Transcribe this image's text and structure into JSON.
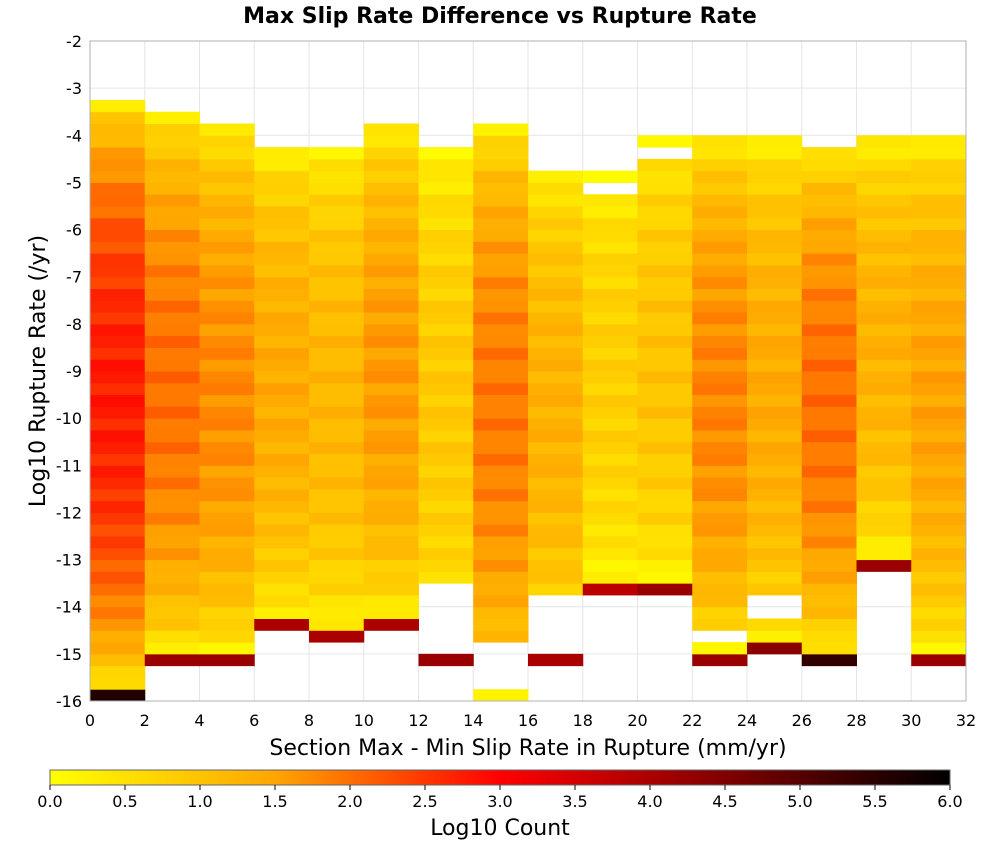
{
  "chart_data": {
    "type": "heatmap",
    "title": "Max Slip Rate Difference vs Rupture Rate",
    "xlabel": "Section Max - Min Slip Rate in Rupture (mm/yr)",
    "ylabel": "Log10 Rupture Rate (/yr)",
    "xlim": [
      0,
      32
    ],
    "ylim": [
      -16,
      -2
    ],
    "x_bin_width": 2,
    "y_bin_height": 0.25,
    "x_ticks": [
      "0",
      "2",
      "4",
      "6",
      "8",
      "10",
      "12",
      "14",
      "16",
      "18",
      "20",
      "22",
      "24",
      "26",
      "28",
      "30",
      "32"
    ],
    "y_ticks": [
      "-2",
      "-3",
      "-4",
      "-5",
      "-6",
      "-7",
      "-8",
      "-9",
      "-10",
      "-11",
      "-12",
      "-13",
      "-14",
      "-15",
      "-16"
    ],
    "grid": true,
    "colorbar": {
      "label": "Log10 Count",
      "range": [
        0,
        6
      ],
      "ticks": [
        "0.0",
        "0.5",
        "1.0",
        "1.5",
        "2.0",
        "2.5",
        "3.0",
        "3.5",
        "4.0",
        "4.5",
        "5.0",
        "5.5",
        "6.0"
      ],
      "colors": [
        "#ffff00",
        "#ffa500",
        "#ff0000",
        "#800000",
        "#000000"
      ]
    },
    "columns": [
      {
        "x": 0,
        "bottom": 5.6,
        "peak": 2.75,
        "min_y": -16,
        "max_y": -3.25,
        "gaps": []
      },
      {
        "x": 2,
        "bottom": 4.2,
        "peak": 2.0,
        "min_y": -15.25,
        "max_y": -3.5,
        "gaps": []
      },
      {
        "x": 4,
        "bottom": 4.2,
        "peak": 1.75,
        "min_y": -15.25,
        "max_y": -3.75,
        "gaps": []
      },
      {
        "x": 6,
        "bottom": 4.0,
        "peak": 1.4,
        "min_y": -14.5,
        "max_y": -4.25,
        "gaps": []
      },
      {
        "x": 8,
        "bottom": 4.0,
        "peak": 1.2,
        "min_y": -14.75,
        "max_y": -4.25,
        "gaps": []
      },
      {
        "x": 10,
        "bottom": 4.0,
        "peak": 1.6,
        "min_y": -14.5,
        "max_y": -3.75,
        "gaps": []
      },
      {
        "x": 12,
        "bottom": 4.2,
        "peak": 0.9,
        "min_y": -15.25,
        "max_y": -4.25,
        "gaps": [
          [
            -15,
            -13.5
          ]
        ]
      },
      {
        "x": 14,
        "bottom": 0.2,
        "peak": 1.9,
        "min_y": -16,
        "max_y": -3.75,
        "gaps": [
          [
            -15.75,
            -14.75
          ]
        ]
      },
      {
        "x": 16,
        "bottom": 4.0,
        "peak": 1.3,
        "min_y": -15.25,
        "max_y": -4.75,
        "gaps": [
          [
            -15,
            -13.75
          ]
        ]
      },
      {
        "x": 18,
        "bottom": 3.8,
        "peak": 0.8,
        "min_y": -13.75,
        "max_y": -4.75,
        "gaps": [
          [
            -5.25,
            -5.0
          ]
        ]
      },
      {
        "x": 20,
        "bottom": 4.2,
        "peak": 1.0,
        "min_y": -13.75,
        "max_y": -4.0,
        "gaps": [
          [
            -4.5,
            -4.25
          ]
        ]
      },
      {
        "x": 22,
        "bottom": 4.2,
        "peak": 1.8,
        "min_y": -15.25,
        "max_y": -4.0,
        "gaps": [
          [
            -14.75,
            -14.5
          ]
        ]
      },
      {
        "x": 24,
        "bottom": 4.4,
        "peak": 1.4,
        "min_y": -15.0,
        "max_y": -4.0,
        "gaps": [
          [
            -14.25,
            -13.75
          ]
        ]
      },
      {
        "x": 26,
        "bottom": 5.4,
        "peak": 2.0,
        "min_y": -15.25,
        "max_y": -4.25,
        "gaps": []
      },
      {
        "x": 28,
        "bottom": 4.2,
        "peak": 1.3,
        "min_y": -13.25,
        "max_y": -4.0,
        "gaps": []
      },
      {
        "x": 30,
        "bottom": 4.2,
        "peak": 1.5,
        "min_y": -15.25,
        "max_y": -4.0,
        "gaps": []
      }
    ]
  }
}
